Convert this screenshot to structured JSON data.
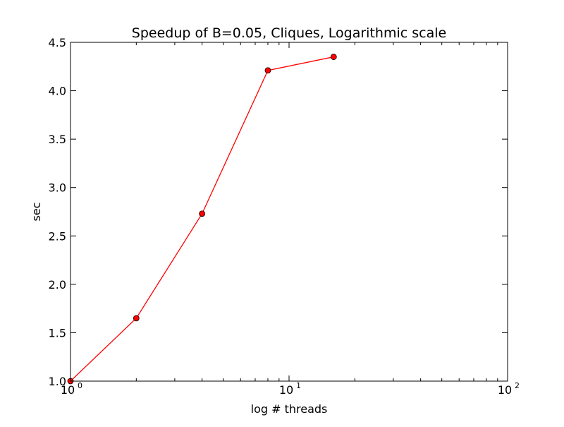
{
  "chart_data": {
    "type": "line",
    "title": "Speedup of B=0.05, Cliques, Logarithmic scale",
    "xlabel": "log # threads",
    "ylabel": "sec",
    "xscale": "log",
    "xlim": [
      1,
      100
    ],
    "ylim": [
      1.0,
      4.5
    ],
    "grid": false,
    "x_tick_labels": [
      {
        "value": 1,
        "base": "10",
        "exp": "0"
      },
      {
        "value": 10,
        "base": "10",
        "exp": "1"
      },
      {
        "value": 100,
        "base": "10",
        "exp": "2"
      }
    ],
    "y_tick_labels": [
      "1.0",
      "1.5",
      "2.0",
      "2.5",
      "3.0",
      "3.5",
      "4.0",
      "4.5"
    ],
    "y_tick_values": [
      1.0,
      1.5,
      2.0,
      2.5,
      3.0,
      3.5,
      4.0,
      4.5
    ],
    "series": [
      {
        "x": [
          1,
          2,
          4,
          8,
          16
        ],
        "y": [
          1.0,
          1.65,
          2.73,
          4.21,
          4.35
        ],
        "color": "#ff0000",
        "marker": "circle"
      }
    ]
  }
}
